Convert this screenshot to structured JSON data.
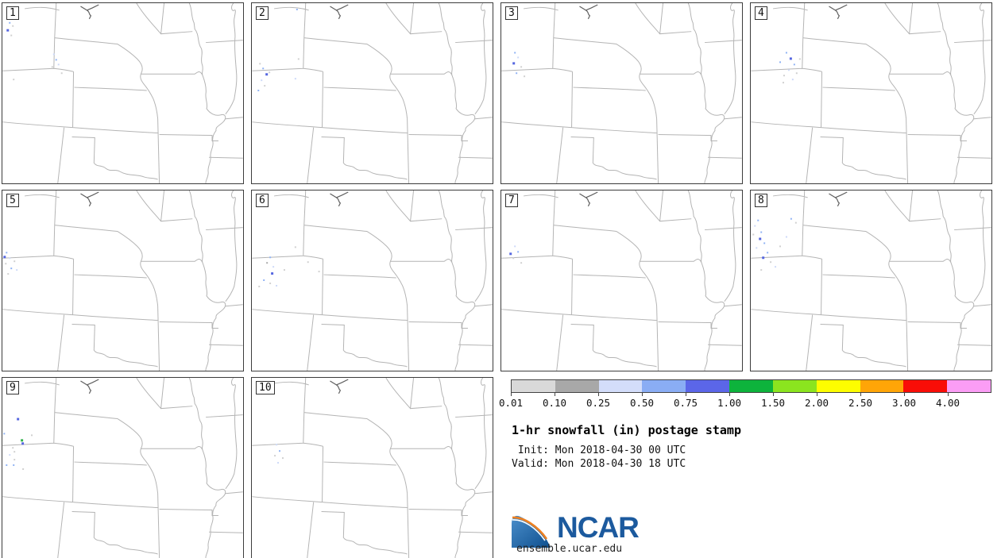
{
  "title": "1-hr snowfall (in) postage stamp",
  "init_line": " Init: Mon 2018-04-30 00 UTC",
  "valid_line": "Valid: Mon 2018-04-30 18 UTC",
  "branding": {
    "logo_text": "NCAR",
    "site": "ensemble.ucar.edu"
  },
  "colorbar": {
    "labels": [
      "0.01",
      "0.10",
      "0.25",
      "0.50",
      "0.75",
      "1.00",
      "1.50",
      "2.00",
      "2.50",
      "3.00",
      "4.00"
    ],
    "colors": [
      "#d9d9d9",
      "#a8a8a8",
      "#d3ddfa",
      "#8aadf4",
      "#5b66e8",
      "#0db33c",
      "#8be41f",
      "#fdfd00",
      "#ffa507",
      "#f90d07",
      "#fb9df5"
    ]
  },
  "speck_colors": {
    "g": "#d0d0d0",
    "G": "#a9a9a9",
    "p": "#cdd9f8",
    "b": "#8fb2f4",
    "B": "#5566e0",
    "t": "#2fb24a"
  },
  "panels": [
    {
      "label": "1",
      "specks": [
        [
          8,
          24,
          "b"
        ],
        [
          12,
          28,
          "g"
        ],
        [
          5,
          33,
          "B"
        ],
        [
          10,
          40,
          "g"
        ],
        [
          64,
          64,
          "p"
        ],
        [
          67,
          71,
          "b"
        ],
        [
          70,
          77,
          "p"
        ],
        [
          62,
          80,
          "g"
        ],
        [
          74,
          88,
          "g"
        ],
        [
          13,
          96,
          "g"
        ]
      ]
    },
    {
      "label": "2",
      "specks": [
        [
          56,
          7,
          "b"
        ],
        [
          9,
          76,
          "g"
        ],
        [
          13,
          82,
          "b"
        ],
        [
          17,
          89,
          "B"
        ],
        [
          11,
          97,
          "p"
        ],
        [
          21,
          87,
          "g"
        ],
        [
          58,
          70,
          "g"
        ],
        [
          54,
          95,
          "p"
        ],
        [
          15,
          104,
          "g"
        ],
        [
          7,
          110,
          "b"
        ]
      ]
    },
    {
      "label": "3",
      "specks": [
        [
          16,
          62,
          "b"
        ],
        [
          20,
          68,
          "p"
        ],
        [
          14,
          75,
          "B"
        ],
        [
          24,
          80,
          "g"
        ],
        [
          18,
          88,
          "b"
        ],
        [
          28,
          92,
          "g"
        ]
      ]
    },
    {
      "label": "4",
      "specks": [
        [
          44,
          62,
          "b"
        ],
        [
          49,
          69,
          "B"
        ],
        [
          54,
          77,
          "b"
        ],
        [
          47,
          84,
          "p"
        ],
        [
          41,
          91,
          "g"
        ],
        [
          57,
          88,
          "g"
        ],
        [
          36,
          74,
          "b"
        ],
        [
          52,
          96,
          "p"
        ],
        [
          61,
          70,
          "g"
        ],
        [
          40,
          100,
          "g"
        ]
      ]
    },
    {
      "label": "5",
      "specks": [
        [
          4,
          78,
          "b"
        ],
        [
          8,
          85,
          "p"
        ],
        [
          3,
          92,
          "g"
        ],
        [
          10,
          98,
          "b"
        ],
        [
          6,
          105,
          "g"
        ],
        [
          14,
          89,
          "g"
        ],
        [
          1,
          83,
          "B"
        ],
        [
          17,
          100,
          "p"
        ]
      ]
    },
    {
      "label": "6",
      "specks": [
        [
          54,
          71,
          "g"
        ],
        [
          22,
          84,
          "b"
        ],
        [
          26,
          96,
          "p"
        ],
        [
          24,
          104,
          "B"
        ],
        [
          40,
          100,
          "g"
        ],
        [
          22,
          117,
          "g"
        ],
        [
          30,
          120,
          "p"
        ],
        [
          70,
          90,
          "g"
        ],
        [
          84,
          102,
          "g"
        ],
        [
          14,
          113,
          "b"
        ],
        [
          8,
          121,
          "g"
        ],
        [
          18,
          91,
          "G"
        ]
      ]
    },
    {
      "label": "7",
      "specks": [
        [
          16,
          70,
          "p"
        ],
        [
          20,
          77,
          "b"
        ],
        [
          14,
          85,
          "g"
        ],
        [
          24,
          91,
          "g"
        ],
        [
          10,
          79,
          "B"
        ]
      ]
    },
    {
      "label": "8",
      "specks": [
        [
          8,
          37,
          "b"
        ],
        [
          4,
          44,
          "p"
        ],
        [
          12,
          52,
          "b"
        ],
        [
          50,
          35,
          "b"
        ],
        [
          56,
          40,
          "g"
        ],
        [
          10,
          60,
          "B"
        ],
        [
          16,
          66,
          "b"
        ],
        [
          6,
          72,
          "p"
        ],
        [
          20,
          78,
          "b"
        ],
        [
          14,
          84,
          "B"
        ],
        [
          24,
          90,
          "g"
        ],
        [
          30,
          96,
          "p"
        ],
        [
          12,
          100,
          "g"
        ],
        [
          36,
          70,
          "g"
        ],
        [
          44,
          58,
          "p"
        ],
        [
          2,
          55,
          "g"
        ]
      ]
    },
    {
      "label": "9",
      "specks": [
        [
          18,
          51,
          "B"
        ],
        [
          23,
          78,
          "t"
        ],
        [
          24,
          82,
          "B"
        ],
        [
          12,
          88,
          "g"
        ],
        [
          14,
          93,
          "g"
        ],
        [
          36,
          72,
          "g"
        ],
        [
          14,
          103,
          "g"
        ],
        [
          4,
          110,
          "b"
        ],
        [
          13,
          110,
          "b"
        ],
        [
          25,
          115,
          "g"
        ],
        [
          8,
          97,
          "p"
        ],
        [
          1,
          70,
          "b"
        ]
      ]
    },
    {
      "label": "10",
      "specks": [
        [
          30,
          84,
          "p"
        ],
        [
          34,
          92,
          "b"
        ],
        [
          28,
          98,
          "g"
        ],
        [
          38,
          101,
          "g"
        ],
        [
          32,
          107,
          "p"
        ]
      ]
    }
  ],
  "layout_note": "10-member ensemble postage stamp maps, central US"
}
